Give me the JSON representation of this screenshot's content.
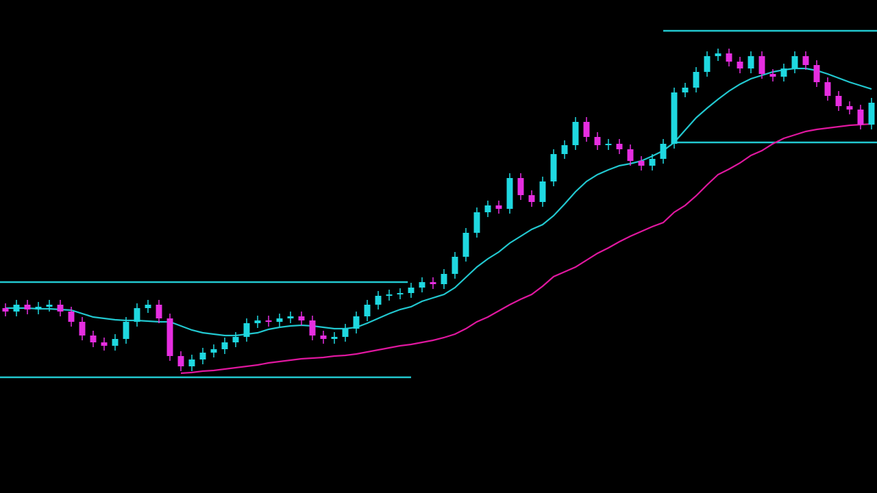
{
  "chart_data": {
    "type": "candlestick",
    "background": "#000000",
    "up_color": "#1fd8e0",
    "down_color": "#e62ee0",
    "ylim": [
      0,
      720
    ],
    "xlim": [
      -0.5,
      79.5
    ],
    "categories": [
      null,
      null,
      null,
      null,
      null,
      null,
      null,
      null,
      null,
      null,
      null,
      null,
      null,
      null,
      null,
      null,
      null,
      null,
      null,
      null,
      null,
      null,
      null,
      null,
      null,
      null,
      null,
      null,
      null,
      null,
      null,
      null,
      null,
      null,
      null,
      null,
      null,
      null,
      null,
      null,
      null,
      null,
      null,
      null,
      null,
      null,
      null,
      null,
      null,
      null,
      null,
      null,
      null,
      null,
      null,
      null,
      null,
      null,
      null,
      null,
      null,
      null,
      null,
      null,
      null,
      null,
      null,
      null,
      null,
      null,
      null,
      null,
      null,
      null,
      null,
      null,
      null,
      null,
      null,
      null
    ],
    "open": [
      270,
      265,
      275,
      268,
      272,
      275,
      265,
      250,
      230,
      220,
      215,
      225,
      250,
      270,
      275,
      255,
      200,
      185,
      195,
      205,
      210,
      220,
      228,
      248,
      252,
      250,
      255,
      258,
      252,
      230,
      225,
      228,
      240,
      258,
      275,
      288,
      290,
      292,
      300,
      308,
      305,
      320,
      345,
      380,
      410,
      420,
      415,
      460,
      435,
      425,
      455,
      495,
      508,
      542,
      520,
      508,
      510,
      502,
      485,
      478,
      488,
      510,
      585,
      592,
      615,
      638,
      642,
      630,
      620,
      638,
      612,
      608,
      620,
      638,
      625,
      600,
      580,
      565,
      560,
      538
    ],
    "high": [
      277,
      282,
      282,
      279,
      282,
      282,
      272,
      257,
      237,
      227,
      232,
      257,
      277,
      282,
      282,
      262,
      207,
      202,
      212,
      217,
      227,
      235,
      255,
      259,
      259,
      262,
      265,
      265,
      259,
      237,
      235,
      247,
      265,
      282,
      295,
      297,
      299,
      307,
      315,
      315,
      327,
      352,
      387,
      417,
      427,
      427,
      467,
      467,
      442,
      462,
      502,
      515,
      549,
      549,
      527,
      517,
      517,
      509,
      492,
      495,
      517,
      592,
      599,
      622,
      645,
      649,
      649,
      637,
      645,
      645,
      619,
      627,
      645,
      645,
      632,
      607,
      587,
      572,
      567,
      577
    ],
    "low": [
      258,
      258,
      261,
      261,
      265,
      258,
      243,
      223,
      213,
      208,
      208,
      218,
      243,
      263,
      248,
      193,
      178,
      178,
      188,
      198,
      203,
      213,
      221,
      241,
      243,
      243,
      248,
      245,
      223,
      218,
      218,
      221,
      233,
      251,
      268,
      281,
      283,
      285,
      293,
      298,
      298,
      313,
      338,
      373,
      403,
      408,
      408,
      428,
      418,
      418,
      448,
      488,
      501,
      513,
      501,
      501,
      495,
      478,
      471,
      471,
      481,
      503,
      578,
      585,
      608,
      631,
      623,
      613,
      613,
      605,
      601,
      601,
      613,
      618,
      593,
      573,
      558,
      553,
      531,
      531
    ],
    "close": [
      265,
      275,
      268,
      272,
      275,
      265,
      250,
      230,
      220,
      215,
      225,
      250,
      270,
      275,
      255,
      200,
      185,
      195,
      205,
      210,
      220,
      228,
      248,
      252,
      250,
      255,
      258,
      252,
      230,
      225,
      228,
      240,
      258,
      275,
      288,
      290,
      292,
      300,
      308,
      305,
      320,
      345,
      380,
      410,
      420,
      415,
      460,
      435,
      425,
      455,
      495,
      508,
      542,
      520,
      508,
      510,
      502,
      485,
      478,
      488,
      510,
      585,
      592,
      615,
      638,
      642,
      630,
      620,
      638,
      612,
      608,
      620,
      638,
      625,
      600,
      580,
      565,
      560,
      538,
      570
    ],
    "series": [
      {
        "color": "#22c8d0",
        "values": [
          270,
          270,
          270,
          269,
          269,
          268,
          267,
          262,
          257,
          255,
          253,
          252,
          252,
          251,
          250,
          250,
          244,
          238,
          234,
          232,
          230,
          230,
          232,
          234,
          239,
          242,
          244,
          245,
          244,
          242,
          240,
          240,
          242,
          248,
          255,
          262,
          268,
          272,
          280,
          285,
          290,
          300,
          315,
          330,
          342,
          352,
          365,
          375,
          385,
          392,
          405,
          422,
          440,
          455,
          465,
          472,
          478,
          481,
          485,
          492,
          500,
          512,
          530,
          548,
          562,
          575,
          587,
          597,
          605,
          610,
          615,
          618,
          620,
          620,
          617,
          612,
          606,
          600,
          595,
          590
        ]
      },
      {
        "color": "#e0179f",
        "values": [
          null,
          null,
          null,
          null,
          null,
          null,
          null,
          null,
          null,
          null,
          null,
          null,
          null,
          null,
          null,
          null,
          175,
          176,
          178,
          179,
          181,
          183,
          185,
          187,
          190,
          192,
          194,
          196,
          197,
          198,
          200,
          201,
          203,
          206,
          209,
          212,
          215,
          217,
          220,
          223,
          227,
          232,
          240,
          250,
          257,
          266,
          275,
          283,
          290,
          302,
          316,
          323,
          330,
          340,
          350,
          358,
          367,
          375,
          382,
          389,
          395,
          410,
          420,
          434,
          450,
          465,
          473,
          482,
          493,
          500,
          510,
          518,
          523,
          528,
          531,
          533,
          535,
          537,
          538,
          539
        ]
      }
    ],
    "levels": [
      {
        "value": 308,
        "from": -0.5,
        "to": 36.7,
        "color": "#22c8d0"
      },
      {
        "value": 169,
        "from": -0.5,
        "to": 37,
        "color": "#22c8d0"
      },
      {
        "value": 675,
        "from": 60,
        "to": 79.5,
        "color": "#22c8d0"
      },
      {
        "value": 512,
        "from": 61,
        "to": 79.5,
        "color": "#22c8d0"
      }
    ]
  }
}
